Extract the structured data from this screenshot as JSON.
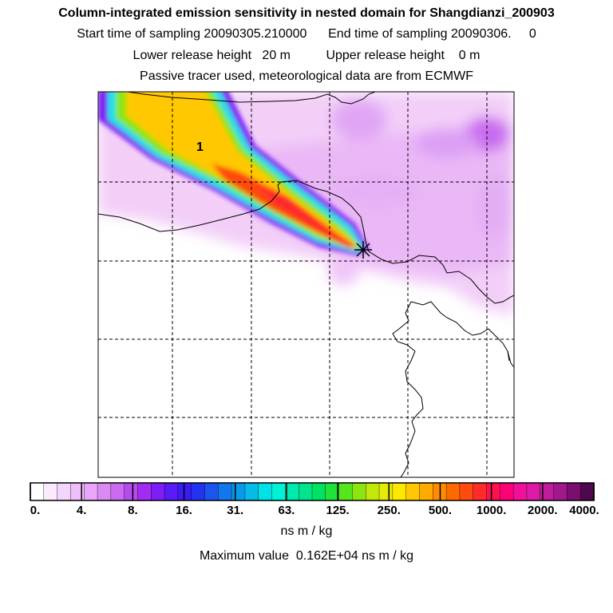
{
  "title": "Column-integrated emission sensitivity in nested domain for Shangdianzi_200903",
  "subtitle_sampling": "Start time of sampling 20090305.210000      End time of sampling 20090306.     0",
  "subtitle_height": "Lower release height   20 m          Upper release height    0 m",
  "subtitle_tracer": "Passive tracer used, meteorological data are from ECMWF",
  "map": {
    "contour_label": "1",
    "release_marker": "release-point-star"
  },
  "colorbar": {
    "units": "ns m / kg",
    "tick_labels": [
      "0.",
      "4.",
      "8.",
      "16.",
      "31.",
      "63.",
      "125.",
      "250.",
      "500.",
      "1000.",
      "2000.",
      "4000."
    ],
    "colors": [
      "#ffffff",
      "#fbeafd",
      "#f5d5fb",
      "#efbff9",
      "#e7a6f7",
      "#d98af3",
      "#c96aef",
      "#b54bec",
      "#a22df0",
      "#7c1ef5",
      "#5a1af7",
      "#3a1df5",
      "#2433f0",
      "#1b55ee",
      "#1276ec",
      "#0a98ea",
      "#05bce8",
      "#00e2e8",
      "#00f2d5",
      "#00eab0",
      "#00e58c",
      "#00e264",
      "#20e33a",
      "#55e61c",
      "#8ce510",
      "#c0e80a",
      "#e4ec06",
      "#ffe800",
      "#ffc800",
      "#ffab00",
      "#ff8c00",
      "#ff6a00",
      "#ff4a10",
      "#ff2a2a",
      "#ff1050",
      "#ff0078",
      "#f0109a",
      "#dc1aa6",
      "#c01c9c",
      "#a0188c",
      "#7a0f70",
      "#50084c"
    ],
    "max_value_text": "Maximum value  0.162E+04 ns m / kg"
  },
  "chart_data": {
    "type": "heatmap",
    "title": "Column-integrated emission sensitivity in nested domain for Shangdianzi_200903",
    "units": "ns m / kg",
    "color_levels": [
      0,
      4,
      8,
      16,
      31,
      63,
      125,
      250,
      500,
      1000,
      2000,
      4000
    ],
    "maximum_value": 1620,
    "contour_labels": [
      "1"
    ],
    "grid": true
  }
}
